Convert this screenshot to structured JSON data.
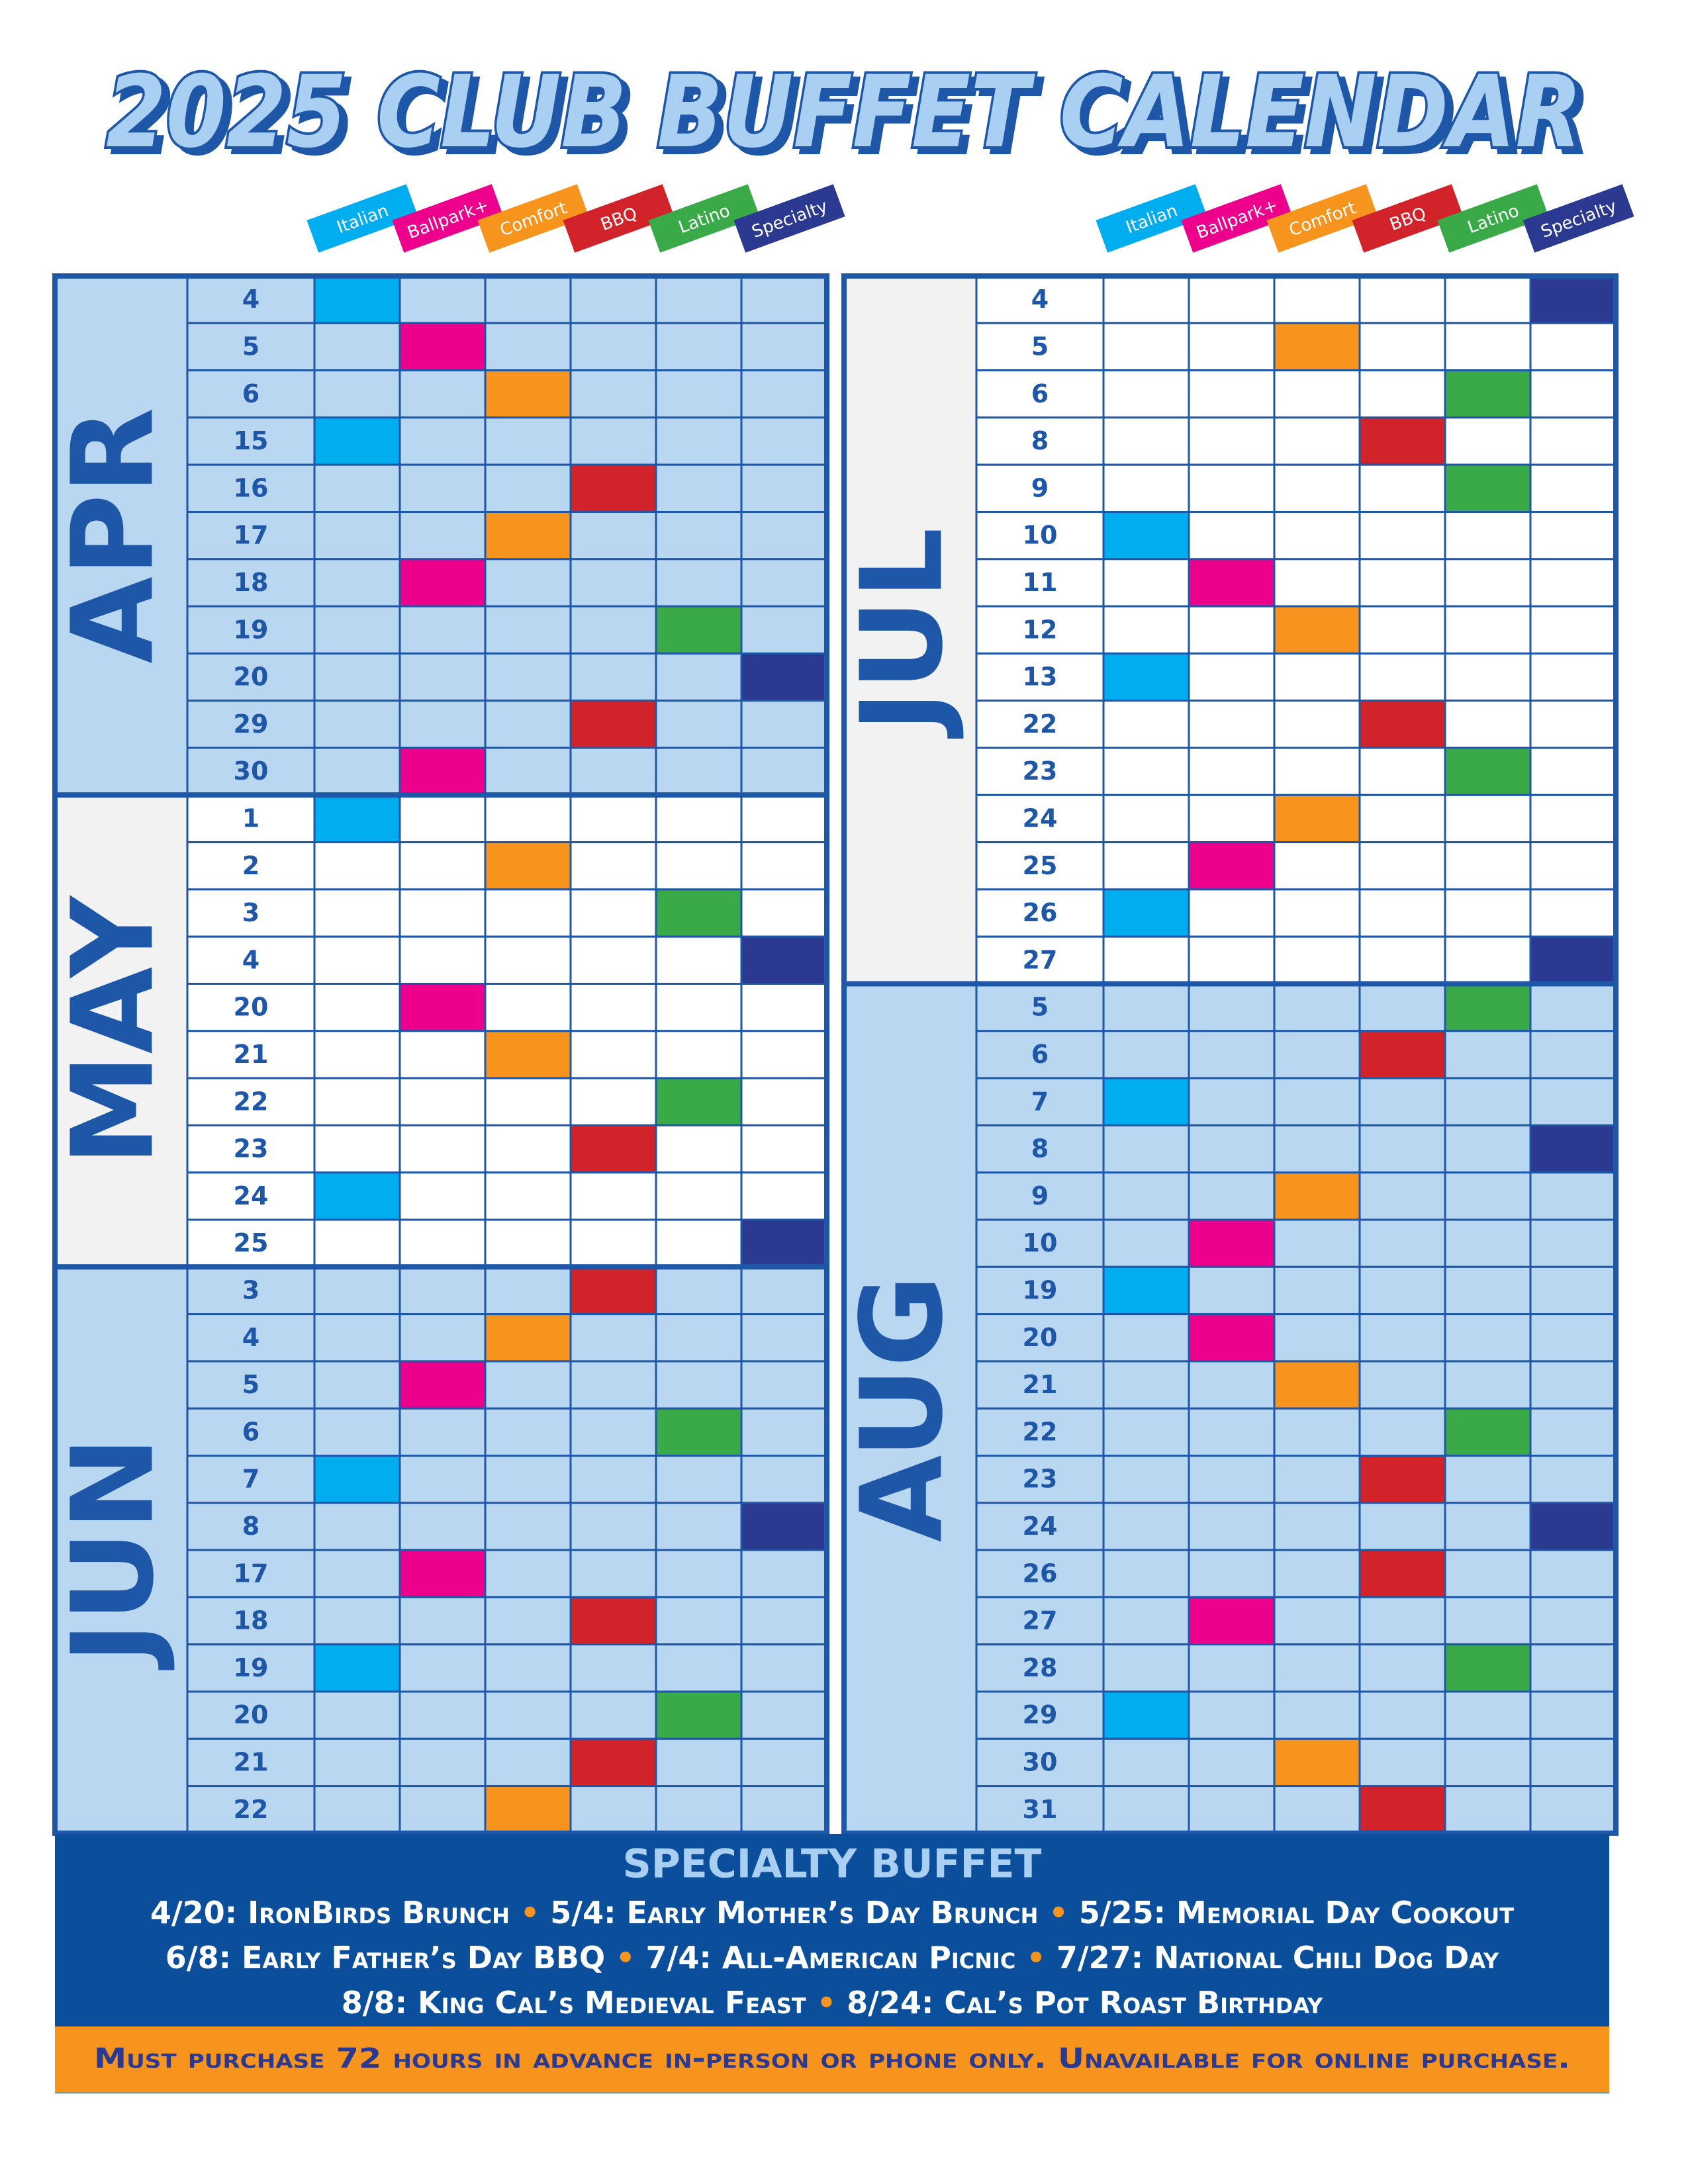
{
  "title": "2025 CLUB BUFFET CALENDAR",
  "categories": [
    {
      "label": "Italian",
      "color": "#00aeef"
    },
    {
      "label": "Ballpark+",
      "color": "#ec008c"
    },
    {
      "label": "Comfort",
      "color": "#f7941d"
    },
    {
      "label": "BBQ",
      "color": "#d2232a"
    },
    {
      "label": "Latino",
      "color": "#3aaa48"
    },
    {
      "label": "Specialty",
      "color": "#2b3990"
    }
  ],
  "months": [
    {
      "name": "APR",
      "rows": [
        {
          "day": 4,
          "buffet": "Italian"
        },
        {
          "day": 5,
          "buffet": "Ballpark+"
        },
        {
          "day": 6,
          "buffet": "Comfort"
        },
        {
          "day": 15,
          "buffet": "Italian"
        },
        {
          "day": 16,
          "buffet": "BBQ"
        },
        {
          "day": 17,
          "buffet": "Comfort"
        },
        {
          "day": 18,
          "buffet": "Ballpark+"
        },
        {
          "day": 19,
          "buffet": "Latino"
        },
        {
          "day": 20,
          "buffet": "Specialty"
        },
        {
          "day": 29,
          "buffet": "BBQ"
        },
        {
          "day": 30,
          "buffet": "Ballpark+"
        }
      ]
    },
    {
      "name": "MAY",
      "rows": [
        {
          "day": 1,
          "buffet": "Italian"
        },
        {
          "day": 2,
          "buffet": "Comfort"
        },
        {
          "day": 3,
          "buffet": "Latino"
        },
        {
          "day": 4,
          "buffet": "Specialty"
        },
        {
          "day": 20,
          "buffet": "Ballpark+"
        },
        {
          "day": 21,
          "buffet": "Comfort"
        },
        {
          "day": 22,
          "buffet": "Latino"
        },
        {
          "day": 23,
          "buffet": "BBQ"
        },
        {
          "day": 24,
          "buffet": "Italian"
        },
        {
          "day": 25,
          "buffet": "Specialty"
        }
      ]
    },
    {
      "name": "JUN",
      "rows": [
        {
          "day": 3,
          "buffet": "BBQ"
        },
        {
          "day": 4,
          "buffet": "Comfort"
        },
        {
          "day": 5,
          "buffet": "Ballpark+"
        },
        {
          "day": 6,
          "buffet": "Latino"
        },
        {
          "day": 7,
          "buffet": "Italian"
        },
        {
          "day": 8,
          "buffet": "Specialty"
        },
        {
          "day": 17,
          "buffet": "Ballpark+"
        },
        {
          "day": 18,
          "buffet": "BBQ"
        },
        {
          "day": 19,
          "buffet": "Italian"
        },
        {
          "day": 20,
          "buffet": "Latino"
        },
        {
          "day": 21,
          "buffet": "BBQ"
        },
        {
          "day": 22,
          "buffet": "Comfort"
        }
      ]
    },
    {
      "name": "JUL",
      "rows": [
        {
          "day": 4,
          "buffet": "Specialty"
        },
        {
          "day": 5,
          "buffet": "Comfort"
        },
        {
          "day": 6,
          "buffet": "Latino"
        },
        {
          "day": 8,
          "buffet": "BBQ"
        },
        {
          "day": 9,
          "buffet": "Latino"
        },
        {
          "day": 10,
          "buffet": "Italian"
        },
        {
          "day": 11,
          "buffet": "Ballpark+"
        },
        {
          "day": 12,
          "buffet": "Comfort"
        },
        {
          "day": 13,
          "buffet": "Italian"
        },
        {
          "day": 22,
          "buffet": "BBQ"
        },
        {
          "day": 23,
          "buffet": "Latino"
        },
        {
          "day": 24,
          "buffet": "Comfort"
        },
        {
          "day": 25,
          "buffet": "Ballpark+"
        },
        {
          "day": 26,
          "buffet": "Italian"
        },
        {
          "day": 27,
          "buffet": "Specialty"
        }
      ]
    },
    {
      "name": "AUG",
      "rows": [
        {
          "day": 5,
          "buffet": "Latino"
        },
        {
          "day": 6,
          "buffet": "BBQ"
        },
        {
          "day": 7,
          "buffet": "Italian"
        },
        {
          "day": 8,
          "buffet": "Specialty"
        },
        {
          "day": 9,
          "buffet": "Comfort"
        },
        {
          "day": 10,
          "buffet": "Ballpark+"
        },
        {
          "day": 19,
          "buffet": "Italian"
        },
        {
          "day": 20,
          "buffet": "Ballpark+"
        },
        {
          "day": 21,
          "buffet": "Comfort"
        },
        {
          "day": 22,
          "buffet": "Latino"
        },
        {
          "day": 23,
          "buffet": "BBQ"
        },
        {
          "day": 24,
          "buffet": "Specialty"
        },
        {
          "day": 26,
          "buffet": "BBQ"
        },
        {
          "day": 27,
          "buffet": "Ballpark+"
        },
        {
          "day": 28,
          "buffet": "Latino"
        },
        {
          "day": 29,
          "buffet": "Italian"
        },
        {
          "day": 30,
          "buffet": "Comfort"
        },
        {
          "day": 31,
          "buffet": "BBQ"
        }
      ]
    }
  ],
  "specialty": {
    "title": "SPECIALTY BUFFET",
    "lines": [
      [
        "4/20: IronBirds Brunch",
        "5/4: Early Mother’s Day Brunch",
        "5/25: Memorial Day Cookout"
      ],
      [
        "6/8: Early Father’s Day BBQ",
        "7/4: All-American Picnic",
        "7/27: National Chili Dog Day"
      ],
      [
        "8/8: King Cal’s Medieval Feast",
        "8/24: Cal’s Pot Roast Birthday"
      ]
    ],
    "note": "Must purchase 72 hours in advance in-person or phone only. Unavailable for online purchase."
  }
}
